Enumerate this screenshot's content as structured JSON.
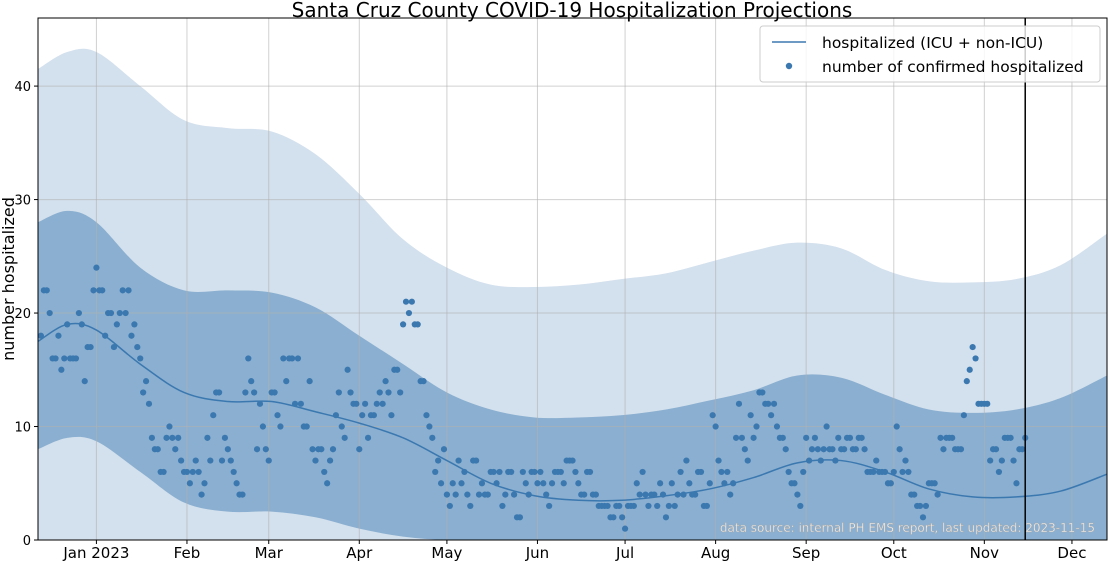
{
  "chart_data": {
    "type": "line",
    "title": "Santa Cruz County COVID-19 Hospitalization Projections",
    "xlabel": "",
    "ylabel": "number hospitalized",
    "x_unit": "days since 2022-12-12",
    "xlim": [
      0,
      366
    ],
    "ylim": [
      0,
      46
    ],
    "grid": true,
    "yticks": [
      0,
      10,
      20,
      30,
      40
    ],
    "xticks": [
      {
        "day": 20,
        "label": "Jan 2023"
      },
      {
        "day": 51,
        "label": "Feb"
      },
      {
        "day": 79,
        "label": "Mar"
      },
      {
        "day": 110,
        "label": "Apr"
      },
      {
        "day": 140,
        "label": "May"
      },
      {
        "day": 171,
        "label": "Jun"
      },
      {
        "day": 201,
        "label": "Jul"
      },
      {
        "day": 232,
        "label": "Aug"
      },
      {
        "day": 263,
        "label": "Sep"
      },
      {
        "day": 293,
        "label": "Oct"
      },
      {
        "day": 324,
        "label": "Nov"
      },
      {
        "day": 354,
        "label": "Dec"
      }
    ],
    "legend": {
      "placement": "top-right",
      "entries": [
        "hospitalized (ICU + non-ICU)",
        "number of confirmed hospitalized"
      ]
    },
    "annotation": "data source: internal PH EMS report, last updated: 2023-11-15",
    "last_updated_day": 338,
    "colors": {
      "line": "#3b78b0",
      "points": "#3b78b0",
      "inner_band": "#8aafd0",
      "outer_band": "#d3e0ed",
      "vline": "#000000"
    },
    "projection_days": [
      0,
      10,
      20,
      35,
      50,
      65,
      80,
      95,
      110,
      125,
      140,
      155,
      170,
      185,
      200,
      215,
      230,
      245,
      260,
      275,
      290,
      305,
      320,
      335,
      350,
      366
    ],
    "mean": [
      17.5,
      19,
      18.5,
      15.5,
      13,
      12.2,
      12.2,
      11.3,
      10.3,
      9,
      7,
      5,
      3.9,
      3.5,
      3.5,
      3.9,
      4.5,
      5.5,
      6.8,
      7,
      6,
      4.5,
      3.8,
      3.8,
      4.3,
      5.8
    ],
    "inner_upper": [
      28,
      29,
      28,
      24,
      22,
      22,
      21.8,
      20.5,
      18,
      15.5,
      13,
      11.5,
      10.8,
      10.8,
      11,
      11.5,
      12.3,
      13.2,
      14.5,
      14.3,
      12.8,
      11.5,
      11.2,
      11.5,
      12.5,
      14.5
    ],
    "inner_lower": [
      8,
      9,
      8.7,
      6,
      3.3,
      2.5,
      2.5,
      2,
      1,
      0.3,
      0,
      0,
      0,
      0,
      0,
      0,
      0,
      0,
      0,
      0,
      0,
      0,
      0,
      0,
      0,
      0
    ],
    "outer_upper": [
      41.5,
      43,
      43,
      40,
      37,
      36.3,
      36,
      34,
      30.5,
      26.5,
      24,
      22.5,
      22.3,
      22.5,
      23,
      23.5,
      24.5,
      25.5,
      26.2,
      25.7,
      23.8,
      22.8,
      22.7,
      23,
      24.2,
      27
    ],
    "outer_lower": [
      0,
      0,
      0,
      0,
      0,
      0,
      0,
      0,
      0,
      0,
      0,
      0,
      0,
      0,
      0,
      0,
      0,
      0,
      0,
      0,
      0,
      0,
      0,
      0,
      0,
      0
    ],
    "observed_start_day": 1,
    "observed": [
      18,
      22,
      22,
      20,
      16,
      16,
      18,
      15,
      16,
      19,
      16,
      16,
      16,
      20,
      19,
      14,
      17,
      17,
      22,
      24,
      22,
      22,
      18,
      20,
      20,
      17,
      19,
      20,
      22,
      20,
      22,
      18,
      19,
      17,
      16,
      13,
      14,
      12,
      9,
      8,
      8,
      6,
      6,
      9,
      10,
      9,
      8,
      9,
      7,
      6,
      6,
      5,
      6,
      7,
      6,
      4,
      5,
      9,
      7,
      11,
      13,
      13,
      7,
      9,
      8,
      7,
      6,
      5,
      4,
      4,
      13,
      16,
      14,
      13,
      8,
      12,
      10,
      8,
      7,
      13,
      13,
      11,
      10,
      16,
      14,
      16,
      16,
      12,
      16,
      12,
      10,
      10,
      14,
      8,
      7,
      8,
      8,
      6,
      5,
      7,
      8,
      11,
      13,
      10,
      9,
      15,
      13,
      12,
      12,
      8,
      11,
      12,
      9,
      11,
      11,
      12,
      13,
      12,
      14,
      13,
      11,
      15,
      15,
      13,
      19,
      21,
      20,
      21,
      19,
      19,
      14,
      14,
      11,
      10,
      9,
      6,
      7,
      5,
      8,
      4,
      3,
      5,
      4,
      7,
      5,
      6,
      4,
      3,
      7,
      7,
      4,
      5,
      4,
      4,
      6,
      6,
      5,
      6,
      3,
      4,
      6,
      6,
      4,
      2,
      2,
      6,
      5,
      4,
      6,
      6,
      5,
      6,
      5,
      4,
      3,
      5,
      6,
      6,
      6,
      5,
      7,
      7,
      7,
      6,
      5,
      4,
      4,
      6,
      6,
      4,
      4,
      3,
      3,
      3,
      3,
      2,
      2,
      3,
      3,
      2,
      1,
      3,
      3,
      3,
      5,
      4,
      6,
      4,
      3,
      4,
      4,
      3,
      5,
      4,
      2,
      3,
      5,
      3,
      4,
      6,
      4,
      7,
      5,
      4,
      4,
      6,
      6,
      3,
      3,
      5,
      11,
      10,
      7,
      6,
      5,
      6,
      4,
      5,
      9,
      12,
      9,
      8,
      7,
      11,
      9,
      10,
      13,
      13,
      12,
      12,
      11,
      12,
      10,
      9,
      9,
      8,
      6,
      5,
      5,
      4,
      3,
      6,
      9,
      7,
      8,
      9,
      8,
      7,
      8,
      10,
      8,
      8,
      7,
      9,
      8,
      8,
      9,
      9,
      8,
      8,
      9,
      9,
      8,
      6,
      6,
      6,
      7,
      6,
      6,
      6,
      5,
      5,
      6,
      10,
      8,
      6,
      7,
      6,
      4,
      4,
      3,
      3,
      2,
      3,
      5,
      5,
      5,
      4,
      9,
      8,
      9,
      9,
      9,
      8,
      8,
      8,
      11,
      14,
      15,
      17,
      16,
      12,
      12,
      12,
      12,
      7,
      8,
      8,
      6,
      7,
      9,
      9,
      9,
      7,
      5,
      8,
      8,
      9
    ]
  }
}
